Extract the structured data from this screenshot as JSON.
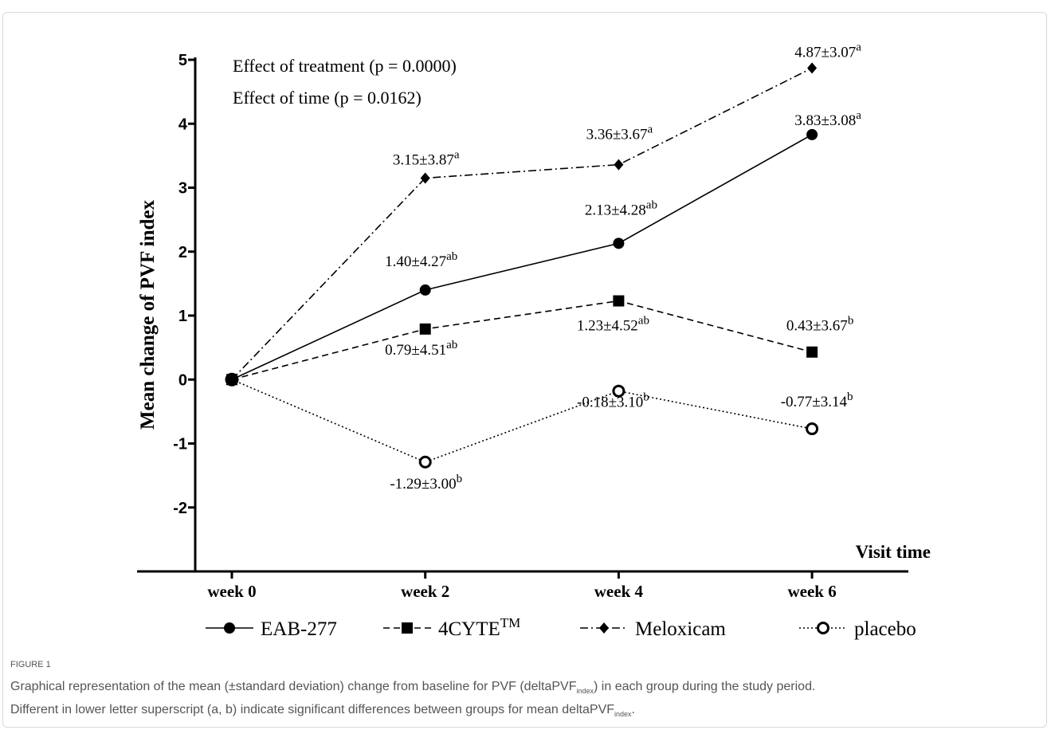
{
  "chart_data": {
    "type": "line",
    "annotations": [
      "Effect of treatment (p = 0.0000)",
      "Effect of time (p = 0.0162)"
    ],
    "x_label": "Visit time",
    "y_label": "Mean change of PVF index",
    "categories": [
      "week 0",
      "week 2",
      "week 4",
      "week 6"
    ],
    "ylim": [
      -3,
      5
    ],
    "yticks": [
      -2,
      -1,
      0,
      1,
      2,
      3,
      4,
      5
    ],
    "series": [
      {
        "name": "EAB-277",
        "color": "#000000",
        "line": "solid",
        "marker": "circle",
        "values": [
          0,
          1.4,
          2.13,
          3.83
        ],
        "value_labels": [
          null,
          "1.40±4.27",
          "2.13±4.28",
          "3.83±3.08"
        ],
        "superscripts": [
          null,
          "ab",
          "ab",
          "a"
        ]
      },
      {
        "name": "4CYTE",
        "name_sup": "TM",
        "color": "#000000",
        "line": "dashed",
        "marker": "square",
        "values": [
          0,
          0.79,
          1.23,
          0.43
        ],
        "value_labels": [
          null,
          "0.79±4.51",
          "1.23±4.52",
          "0.43±3.67"
        ],
        "superscripts": [
          null,
          "ab",
          "ab",
          "b"
        ]
      },
      {
        "name": "Meloxicam",
        "color": "#000000",
        "line": "dashdot",
        "marker": "diamond",
        "values": [
          0,
          3.15,
          3.36,
          4.87
        ],
        "value_labels": [
          null,
          "3.15±3.87",
          "3.36±3.67",
          "4.87±3.07"
        ],
        "superscripts": [
          null,
          "a",
          "a",
          "a"
        ]
      },
      {
        "name": "placebo",
        "color": "#000000",
        "line": "dotted",
        "marker": "open-circle",
        "values": [
          0,
          -1.29,
          -0.18,
          -0.77
        ],
        "value_labels": [
          null,
          "-1.29±3.00",
          "-0.18±3.10",
          "-0.77±3.14"
        ],
        "superscripts": [
          null,
          "b",
          "b",
          "b"
        ]
      }
    ]
  },
  "caption": {
    "label": "FIGURE 1",
    "lines": [
      [
        "Graphical representation of the mean (±standard deviation) change from baseline for PVF (deltaPVF",
        "index",
        ") in each group during the study period."
      ],
      [
        "Different in lower letter superscript (a, b) indicate significant differences between groups for mean deltaPVF",
        "index",
        "."
      ]
    ]
  }
}
